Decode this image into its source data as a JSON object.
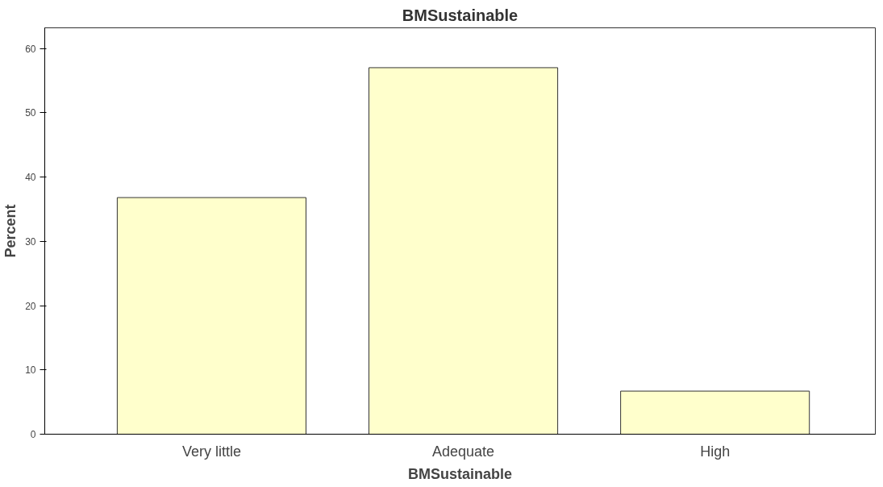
{
  "chart_data": {
    "type": "bar",
    "title": "BMSustainable",
    "xlabel": "BMSustainable",
    "ylabel": "Percent",
    "categories": [
      "Very little",
      "Adequate",
      "High"
    ],
    "values": [
      36.8,
      57.0,
      6.7
    ],
    "color": "#ffffcc",
    "ylim": [
      0,
      63.2
    ],
    "yticks": [
      0,
      10,
      20,
      30,
      40,
      50,
      60
    ],
    "grid": false
  }
}
